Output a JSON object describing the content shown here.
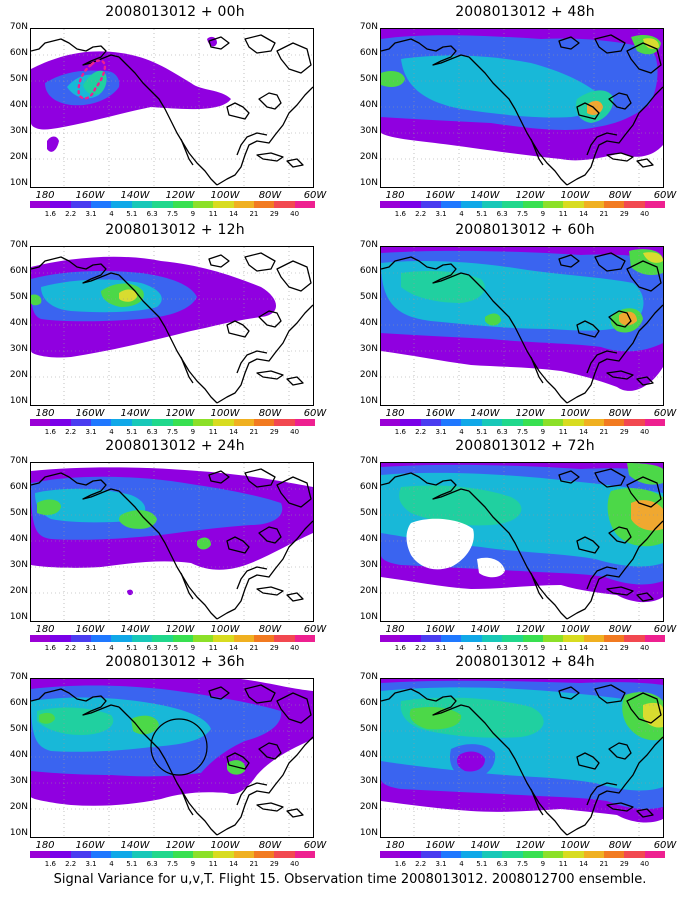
{
  "panels": [
    {
      "title": "2008013012 + 00h"
    },
    {
      "title": "2008013012 + 48h"
    },
    {
      "title": "2008013012 + 12h"
    },
    {
      "title": "2008013012 + 60h"
    },
    {
      "title": "2008013012 + 24h"
    },
    {
      "title": "2008013012 + 72h"
    },
    {
      "title": "2008013012 + 36h"
    },
    {
      "title": "2008013012 + 84h"
    }
  ],
  "lat_labels": [
    "70N",
    "60N",
    "50N",
    "40N",
    "30N",
    "20N",
    "10N"
  ],
  "lon_labels": [
    "180",
    "160W",
    "140W",
    "120W",
    "100W",
    "80W",
    "60W"
  ],
  "colorbar": {
    "labels": [
      "1.6",
      "2.2",
      "3.1",
      "4",
      "5.1",
      "6.3",
      "7.5",
      "9",
      "11",
      "14",
      "21",
      "29",
      "40"
    ],
    "colors": [
      "#9a00d6",
      "#7a00e8",
      "#4a3cf0",
      "#1f78ff",
      "#10a8e8",
      "#18c8b8",
      "#20d88c",
      "#38e050",
      "#8ce028",
      "#d8dc20",
      "#f0b020",
      "#f27a20",
      "#f24850",
      "#ee2090"
    ]
  },
  "map_colors": {
    "purple": "#9000e0",
    "blue": "#3a64f0",
    "cyan": "#18b8d8",
    "teal": "#20d0a0",
    "green": "#4cd848",
    "yellow": "#d8dc30",
    "orange": "#f0a830",
    "coast": "#000000",
    "marker": "#ee2090"
  },
  "caption": "Signal Variance for u,v,T. Flight 15. Observation time 2008013012. 2008012700 ensemble."
}
